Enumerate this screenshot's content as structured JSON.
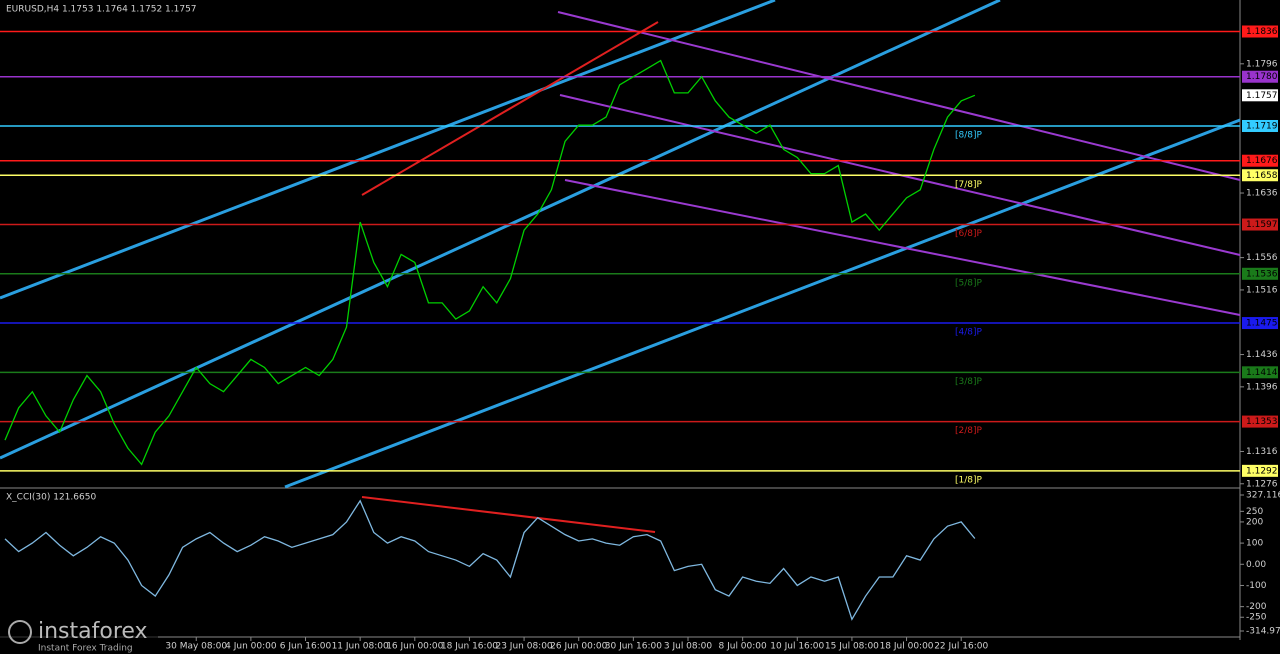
{
  "chart_data": [
    {
      "type": "line",
      "title": "EURUSD,H4  1.1753 1.1764 1.1752 1.1757",
      "color": "#00d000",
      "categories": [
        null,
        null,
        null,
        null,
        null,
        null,
        null,
        null,
        null,
        null,
        null,
        null,
        null,
        null,
        "30 May 08:00",
        null,
        null,
        null,
        "4 Jun 00:00",
        null,
        null,
        null,
        "6 Jun 16:00",
        null,
        null,
        null,
        "11 Jun 08:00",
        null,
        null,
        null,
        "16 Jun 00:00",
        null,
        null,
        null,
        "18 Jun 16:00",
        null,
        null,
        null,
        "23 Jun 08:00",
        null,
        null,
        null,
        "26 Jun 00:00",
        null,
        null,
        null,
        "30 Jun 16:00",
        null,
        null,
        null,
        "3 Jul 08:00",
        null,
        null,
        null,
        "8 Jul 00:00",
        null,
        null,
        null,
        "10 Jul 16:00",
        null,
        null,
        null,
        "15 Jul 08:00",
        null,
        null,
        null,
        "18 Jul 00:00",
        null,
        null,
        null,
        "22 Jul 16:00",
        null
      ],
      "values": [
        1.133,
        1.137,
        1.139,
        1.136,
        1.134,
        1.138,
        1.141,
        1.139,
        1.135,
        1.132,
        1.13,
        1.134,
        1.136,
        1.139,
        1.142,
        1.14,
        1.139,
        1.141,
        1.143,
        1.142,
        1.14,
        1.141,
        1.142,
        1.141,
        1.143,
        1.147,
        1.16,
        1.155,
        1.152,
        1.156,
        1.155,
        1.15,
        1.15,
        1.148,
        1.149,
        1.152,
        1.15,
        1.153,
        1.159,
        1.161,
        1.164,
        1.17,
        1.172,
        1.172,
        1.173,
        1.177,
        1.178,
        1.179,
        1.18,
        1.176,
        1.176,
        1.178,
        1.175,
        1.173,
        1.172,
        1.171,
        1.172,
        1.169,
        1.168,
        1.166,
        1.166,
        1.167,
        1.16,
        1.161,
        1.159,
        1.161,
        1.163,
        1.164,
        1.169,
        1.173,
        1.175,
        1.1757
      ],
      "ylim": [
        1.1272,
        1.1875
      ],
      "yticks": [
        1.1276,
        1.1316,
        1.1396,
        1.1436,
        1.1516,
        1.1556,
        1.1636,
        1.1796
      ],
      "current_price": 1.1757,
      "levels": [
        {
          "value": 1.1836,
          "color": "#ff1a1a"
        },
        {
          "value": 1.178,
          "label": "1.1780",
          "color": "#9933cc"
        },
        {
          "value": 1.1719,
          "color": "#33ccff",
          "murrey": "[8/8]P"
        },
        {
          "value": 1.1676,
          "color": "#ff1a1a"
        },
        {
          "value": 1.1658,
          "color": "#ffff66",
          "murrey": "[7/8]P"
        },
        {
          "value": 1.1597,
          "color": "#cc1a1a",
          "murrey": "[6/8]P"
        },
        {
          "value": 1.1536,
          "color": "#1a7a1a",
          "murrey": "[5/8]P"
        },
        {
          "value": 1.1475,
          "color": "#1a1aee",
          "murrey": "[4/8]P"
        },
        {
          "value": 1.1414,
          "color": "#1a7a1a",
          "murrey": "[3/8]P"
        },
        {
          "value": 1.1353,
          "color": "#cc1a1a",
          "murrey": "[2/8]P"
        },
        {
          "value": 1.1292,
          "color": "#ffff66",
          "murrey": "[1/8]P"
        }
      ]
    },
    {
      "type": "line",
      "title": "X_CCI(30) 121.6650",
      "color": "#7fb8e0",
      "values": [
        120,
        60,
        100,
        150,
        90,
        40,
        80,
        130,
        100,
        20,
        -100,
        -150,
        -50,
        80,
        120,
        150,
        100,
        60,
        90,
        130,
        110,
        80,
        100,
        120,
        140,
        200,
        300,
        150,
        100,
        130,
        110,
        60,
        40,
        20,
        -10,
        50,
        20,
        -60,
        150,
        220,
        180,
        140,
        110,
        120,
        100,
        90,
        130,
        140,
        110,
        -30,
        -10,
        0,
        -120,
        -150,
        -60,
        -80,
        -90,
        -20,
        -100,
        -60,
        -80,
        -60,
        -260,
        -150,
        -60,
        -60,
        40,
        20,
        120,
        180,
        200,
        121.665
      ],
      "ylim": [
        -314.975,
        327.116
      ],
      "yticks": [
        327.116,
        250,
        200,
        100,
        {
          "value": 0,
          "label": "0.00"
        },
        -100,
        -200,
        -250,
        -314.975
      ]
    }
  ],
  "watermark": {
    "brand": "instaforex",
    "tagline": "Instant Forex Trading"
  }
}
